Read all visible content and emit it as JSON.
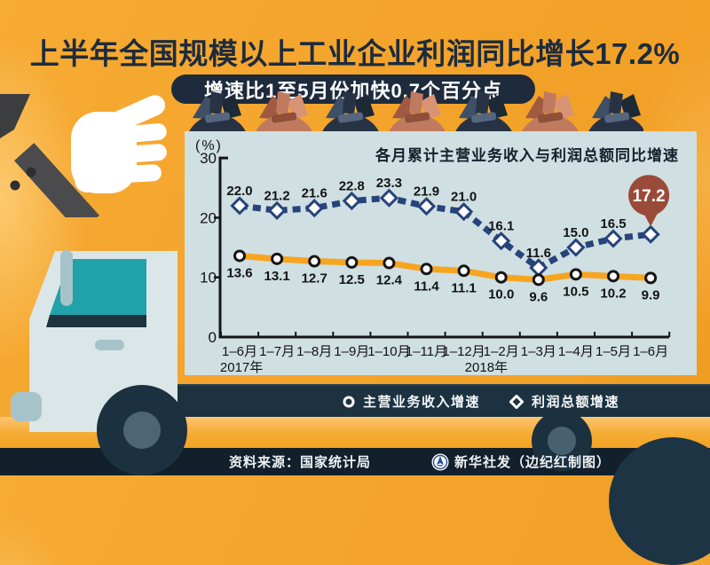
{
  "title": "上半年全国规模以上工业企业利润同比增长17.2%",
  "subtitle": "增速比1至5月份加快0.7个百分点",
  "chart_data": {
    "type": "line",
    "title": "各月累计主营业务收入与利润总额同比增速",
    "unit_label": "(%)",
    "categories": [
      "1–6月",
      "1–7月",
      "1–8月",
      "1–9月",
      "1–10月",
      "1–11月",
      "1–12月",
      "1–2月",
      "1–3月",
      "1–4月",
      "1–5月",
      "1–6月"
    ],
    "year_labels": [
      {
        "text": "2017年",
        "at": 0.05
      },
      {
        "text": "2018年",
        "at": 6.6
      }
    ],
    "y_ticks": [
      0,
      10,
      20,
      30
    ],
    "ylim": [
      0,
      30
    ],
    "grid": false,
    "legend_position": "bottom",
    "series": [
      {
        "name": "主营业务收入增速",
        "marker": "circle",
        "line_style": "solid",
        "color": "#f7a51f",
        "marker_stroke": "#151515",
        "values": [
          13.6,
          13.1,
          12.7,
          12.5,
          12.4,
          11.4,
          11.1,
          10.0,
          9.6,
          10.5,
          10.2,
          9.9
        ],
        "labels": [
          "13.6",
          "13.1",
          "12.7",
          "12.5",
          "12.4",
          "11.4",
          "11.1",
          "10.0",
          "9.6",
          "10.5",
          "10.2",
          "9.9"
        ],
        "label_side": "below"
      },
      {
        "name": "利润总额增速",
        "marker": "diamond",
        "line_style": "dashed",
        "color": "#27437b",
        "marker_stroke": "#27437b",
        "values": [
          22.0,
          21.2,
          21.6,
          22.8,
          23.3,
          21.9,
          21.0,
          16.1,
          11.6,
          15.0,
          16.5,
          17.2
        ],
        "labels": [
          "22.0",
          "21.2",
          "21.6",
          "22.8",
          "23.3",
          "21.9",
          "21.0",
          "16.1",
          "11.6",
          "15.0",
          "16.5",
          ""
        ],
        "label_side": "above"
      }
    ],
    "highlight": {
      "series": "利润总额增速",
      "index": 11,
      "text": "17.2",
      "color": "#9a4a38",
      "text_color": "#ffffff"
    }
  },
  "legend": {
    "items": [
      {
        "icon": "circle-marker-icon",
        "label": "主营业务收入增速"
      },
      {
        "icon": "diamond-marker-icon",
        "label": "利润总额增速"
      }
    ]
  },
  "footer": {
    "source": "资料来源：国家统计局",
    "credit": "新华社发（边纪红制图）",
    "logo": "xinhua-logo"
  },
  "colors": {
    "background_orange": "#f4a42c",
    "panel_blue": "#cfdfe2",
    "dark_navy": "#1d2b3d",
    "band_navy": "#1d3240",
    "revenue_line": "#f7a51f",
    "profit_line": "#27437b",
    "balloon_red": "#9a4a38",
    "bag_dark": "#273345",
    "bag_salmon": "#c07a5f"
  }
}
